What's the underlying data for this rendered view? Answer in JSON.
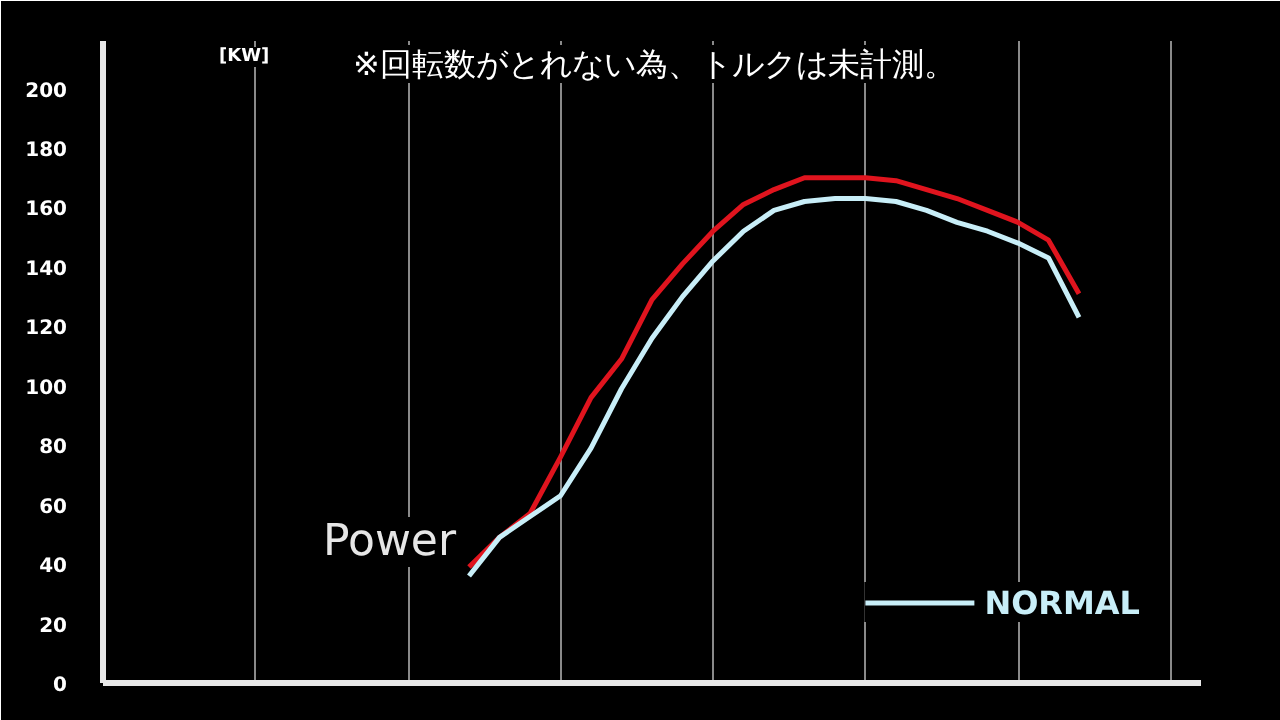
{
  "chart_data": {
    "type": "line",
    "ylabel": "[KW]",
    "annotations": [
      "※回転数がとれない為、トルクは未計測。",
      "Power"
    ],
    "categories": [
      null,
      null,
      null,
      null,
      null,
      null,
      null,
      null,
      null,
      null,
      null,
      null,
      null,
      null,
      null,
      null,
      null,
      null,
      null,
      null,
      null,
      null,
      null,
      null,
      null,
      null,
      null,
      null,
      null,
      null,
      null,
      null,
      null,
      null,
      null,
      null
    ],
    "ylim": [
      0,
      216
    ],
    "yticks": [
      0,
      20,
      40,
      60,
      80,
      100,
      120,
      140,
      160,
      180,
      200
    ],
    "grid": "x",
    "legend": "bottom right",
    "line_style": "solid",
    "series": [
      {
        "color": "#e0141e",
        "values": [
          null,
          null,
          null,
          null,
          null,
          null,
          null,
          null,
          null,
          null,
          null,
          null,
          39,
          49,
          57,
          76,
          96,
          109,
          129,
          141,
          152,
          161,
          166,
          170,
          170,
          170,
          169,
          166,
          163,
          159,
          155,
          149,
          131,
          null,
          null,
          null
        ]
      },
      {
        "name": "NORMAL",
        "color": "#c8eef8",
        "values": [
          null,
          null,
          null,
          null,
          null,
          null,
          null,
          null,
          null,
          null,
          null,
          null,
          36,
          49,
          56,
          63,
          79,
          99,
          116,
          130,
          142,
          152,
          159,
          162,
          163,
          163,
          162,
          159,
          155,
          152,
          148,
          143,
          123,
          null,
          null,
          null
        ]
      }
    ]
  }
}
